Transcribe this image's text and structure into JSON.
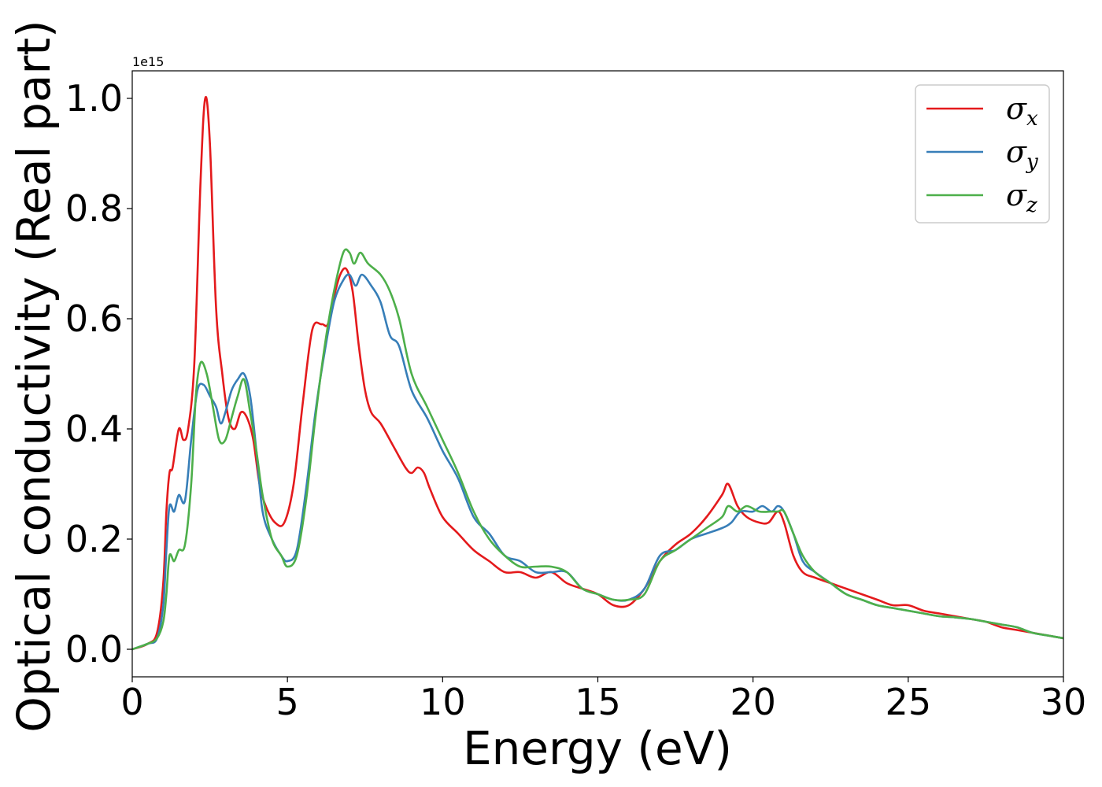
{
  "chart_data": {
    "type": "line",
    "xlabel": "Energy (eV)",
    "ylabel": "Optical conductivity (Real part)",
    "y_offset_text": "1e15",
    "xlim": [
      0,
      30
    ],
    "ylim": [
      -0.05,
      1.05
    ],
    "y_scale_factor": 1000000000000000.0,
    "x_ticks": [
      0,
      5,
      10,
      15,
      20,
      25,
      30
    ],
    "x_tick_labels": [
      "0",
      "5",
      "10",
      "15",
      "20",
      "25",
      "30"
    ],
    "y_ticks": [
      0.0,
      0.2,
      0.4,
      0.6,
      0.8,
      1.0
    ],
    "y_tick_labels": [
      "0.0",
      "0.2",
      "0.4",
      "0.6",
      "0.8",
      "1.0"
    ],
    "grid": false,
    "legend_position": "top-right",
    "series": [
      {
        "name": "σx",
        "symbol": "σ",
        "subscript": "x",
        "color": "#e41a1c",
        "x": [
          0,
          0.5,
          0.8,
          1.0,
          1.1,
          1.2,
          1.3,
          1.5,
          1.65,
          1.8,
          2.0,
          2.2,
          2.35,
          2.5,
          2.7,
          2.9,
          3.1,
          3.3,
          3.5,
          3.7,
          3.9,
          4.1,
          4.3,
          4.6,
          4.9,
          5.2,
          5.5,
          5.8,
          6.1,
          6.3,
          6.5,
          6.7,
          6.9,
          7.1,
          7.3,
          7.5,
          7.7,
          8.0,
          8.4,
          8.8,
          9.0,
          9.2,
          9.4,
          9.6,
          10.0,
          10.5,
          11.0,
          11.5,
          12.0,
          12.5,
          13.0,
          13.5,
          14.0,
          14.5,
          15.0,
          15.5,
          16.0,
          16.5,
          17.0,
          17.5,
          18.0,
          18.5,
          19.0,
          19.2,
          19.5,
          19.8,
          20.2,
          20.5,
          20.8,
          21.0,
          21.3,
          21.6,
          22.0,
          22.5,
          23.0,
          23.5,
          24.0,
          24.5,
          25.0,
          25.5,
          26.0,
          26.5,
          27.0,
          27.5,
          28.0,
          28.5,
          29.0,
          29.5,
          30.0
        ],
        "values": [
          0.0,
          0.01,
          0.03,
          0.12,
          0.25,
          0.32,
          0.33,
          0.4,
          0.38,
          0.4,
          0.52,
          0.85,
          1.0,
          0.92,
          0.62,
          0.5,
          0.42,
          0.4,
          0.43,
          0.42,
          0.38,
          0.3,
          0.26,
          0.23,
          0.23,
          0.3,
          0.45,
          0.58,
          0.59,
          0.59,
          0.64,
          0.68,
          0.69,
          0.65,
          0.55,
          0.47,
          0.43,
          0.41,
          0.37,
          0.33,
          0.32,
          0.33,
          0.32,
          0.29,
          0.24,
          0.21,
          0.18,
          0.16,
          0.14,
          0.14,
          0.13,
          0.14,
          0.12,
          0.11,
          0.1,
          0.08,
          0.08,
          0.11,
          0.16,
          0.19,
          0.21,
          0.24,
          0.28,
          0.3,
          0.26,
          0.24,
          0.23,
          0.23,
          0.25,
          0.23,
          0.17,
          0.14,
          0.13,
          0.12,
          0.11,
          0.1,
          0.09,
          0.08,
          0.08,
          0.07,
          0.065,
          0.06,
          0.055,
          0.05,
          0.04,
          0.035,
          0.03,
          0.025,
          0.02
        ]
      },
      {
        "name": "σy",
        "symbol": "σ",
        "subscript": "y",
        "color": "#377eb8",
        "x": [
          0,
          0.5,
          0.8,
          1.0,
          1.1,
          1.2,
          1.35,
          1.5,
          1.7,
          1.9,
          2.1,
          2.3,
          2.5,
          2.7,
          2.85,
          3.0,
          3.2,
          3.4,
          3.6,
          3.8,
          4.0,
          4.2,
          4.5,
          4.8,
          5.0,
          5.3,
          5.6,
          5.9,
          6.2,
          6.5,
          6.8,
          7.0,
          7.2,
          7.4,
          7.7,
          8.0,
          8.3,
          8.6,
          9.0,
          9.5,
          10.0,
          10.5,
          11.0,
          11.5,
          12.0,
          12.5,
          13.0,
          13.5,
          14.0,
          14.5,
          15.0,
          15.5,
          16.0,
          16.5,
          17.0,
          17.5,
          18.0,
          18.5,
          19.0,
          19.3,
          19.6,
          20.0,
          20.3,
          20.6,
          20.8,
          21.0,
          21.3,
          21.6,
          22.0,
          22.5,
          23.0,
          23.5,
          24.0,
          24.5,
          25.0,
          25.5,
          26.0,
          26.5,
          27.0,
          27.5,
          28.0,
          28.5,
          29.0,
          29.5,
          30.0
        ],
        "values": [
          0.0,
          0.01,
          0.02,
          0.08,
          0.18,
          0.26,
          0.25,
          0.28,
          0.27,
          0.38,
          0.47,
          0.48,
          0.46,
          0.44,
          0.41,
          0.43,
          0.47,
          0.49,
          0.5,
          0.46,
          0.36,
          0.25,
          0.2,
          0.17,
          0.16,
          0.18,
          0.29,
          0.43,
          0.54,
          0.63,
          0.67,
          0.68,
          0.66,
          0.68,
          0.66,
          0.63,
          0.57,
          0.55,
          0.47,
          0.42,
          0.36,
          0.31,
          0.24,
          0.21,
          0.17,
          0.16,
          0.14,
          0.14,
          0.14,
          0.11,
          0.1,
          0.09,
          0.09,
          0.11,
          0.17,
          0.18,
          0.2,
          0.21,
          0.22,
          0.23,
          0.25,
          0.25,
          0.26,
          0.25,
          0.26,
          0.25,
          0.21,
          0.16,
          0.14,
          0.12,
          0.1,
          0.09,
          0.08,
          0.075,
          0.07,
          0.065,
          0.06,
          0.058,
          0.055,
          0.05,
          0.045,
          0.04,
          0.03,
          0.025,
          0.02
        ]
      },
      {
        "name": "σz",
        "symbol": "σ",
        "subscript": "z",
        "color": "#4daf4a",
        "x": [
          0,
          0.5,
          0.8,
          1.0,
          1.1,
          1.2,
          1.35,
          1.5,
          1.7,
          1.9,
          2.05,
          2.2,
          2.4,
          2.6,
          2.8,
          3.0,
          3.2,
          3.4,
          3.6,
          3.8,
          4.0,
          4.2,
          4.5,
          4.8,
          5.0,
          5.3,
          5.6,
          5.9,
          6.2,
          6.5,
          6.8,
          7.0,
          7.15,
          7.35,
          7.6,
          8.0,
          8.3,
          8.6,
          9.0,
          9.5,
          10.0,
          10.5,
          11.0,
          11.5,
          12.0,
          12.5,
          13.0,
          13.5,
          14.0,
          14.5,
          15.0,
          15.5,
          16.0,
          16.5,
          17.0,
          17.5,
          18.0,
          18.5,
          19.0,
          19.2,
          19.5,
          19.8,
          20.2,
          20.6,
          20.8,
          21.0,
          21.3,
          21.6,
          22.0,
          22.5,
          23.0,
          23.5,
          24.0,
          24.5,
          25.0,
          25.5,
          26.0,
          26.5,
          27.0,
          27.5,
          28.0,
          28.5,
          29.0,
          29.5,
          30.0
        ],
        "values": [
          0.0,
          0.01,
          0.02,
          0.05,
          0.1,
          0.17,
          0.16,
          0.18,
          0.19,
          0.3,
          0.46,
          0.52,
          0.5,
          0.44,
          0.38,
          0.38,
          0.42,
          0.46,
          0.49,
          0.43,
          0.36,
          0.28,
          0.2,
          0.17,
          0.15,
          0.17,
          0.27,
          0.42,
          0.55,
          0.65,
          0.72,
          0.72,
          0.7,
          0.72,
          0.7,
          0.68,
          0.65,
          0.6,
          0.5,
          0.44,
          0.38,
          0.32,
          0.25,
          0.2,
          0.17,
          0.15,
          0.15,
          0.15,
          0.14,
          0.11,
          0.1,
          0.09,
          0.09,
          0.1,
          0.16,
          0.18,
          0.2,
          0.22,
          0.24,
          0.26,
          0.25,
          0.26,
          0.25,
          0.25,
          0.25,
          0.25,
          0.21,
          0.17,
          0.14,
          0.12,
          0.1,
          0.09,
          0.08,
          0.075,
          0.07,
          0.065,
          0.06,
          0.058,
          0.055,
          0.05,
          0.045,
          0.04,
          0.03,
          0.025,
          0.02
        ]
      }
    ]
  }
}
